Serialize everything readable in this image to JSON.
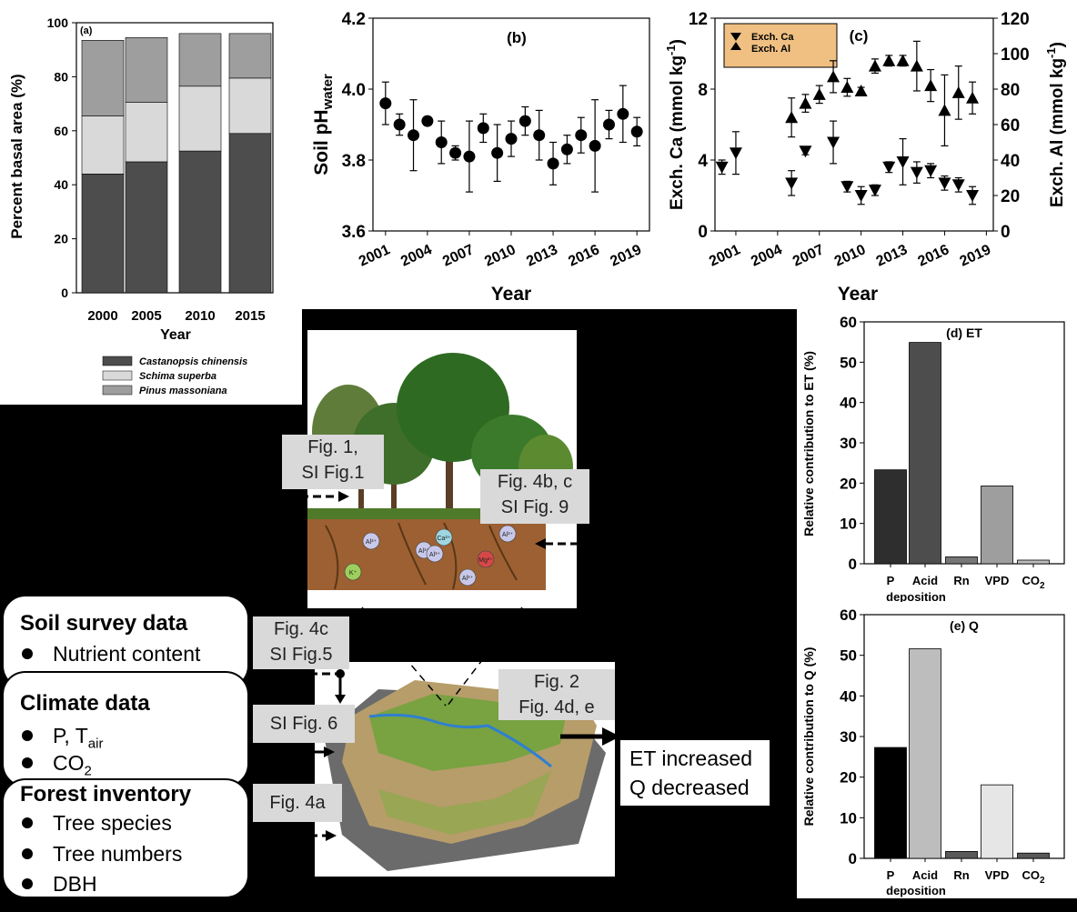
{
  "chart_data": [
    {
      "id": "a",
      "type": "bar",
      "stacked": true,
      "panel_label": "(a)",
      "ylabel": "Percent basal area (%)",
      "xlabel": "Year",
      "ylim": [
        0,
        100
      ],
      "yticks": [
        "0",
        "20",
        "40",
        "60",
        "80",
        "100"
      ],
      "categories": [
        "2000",
        "2005",
        "2010",
        "2015"
      ],
      "series": [
        {
          "name": "Castanopsis chinensis",
          "values": [
            44,
            48.5,
            52.5,
            59
          ],
          "color": "#4d4d4d"
        },
        {
          "name": "Schima superba",
          "values": [
            21.5,
            22,
            24,
            20.5
          ],
          "color": "#d9d9d9"
        },
        {
          "name": "Pinus massoniana",
          "values": [
            28,
            24,
            19.5,
            16.5
          ],
          "color": "#9e9e9e"
        }
      ]
    },
    {
      "id": "b",
      "type": "scatter",
      "panel_label": "(b)",
      "ylabel": "Soil pH",
      "ylabel_sub": "water",
      "xlabel": "Year",
      "ylim": [
        3.6,
        4.2
      ],
      "yticks": [
        "3.6",
        "3.8",
        "4.0",
        "4.2"
      ],
      "xticks": [
        "2001",
        "2004",
        "2007",
        "2010",
        "2013",
        "2016",
        "2019"
      ],
      "x": [
        2001,
        2002,
        2003,
        2004,
        2005,
        2006,
        2007,
        2008,
        2009,
        2010,
        2011,
        2012,
        2013,
        2014,
        2015,
        2016,
        2017,
        2018,
        2019
      ],
      "y": [
        3.96,
        3.9,
        3.87,
        3.91,
        3.85,
        3.82,
        3.81,
        3.89,
        3.82,
        3.86,
        3.91,
        3.87,
        3.79,
        3.83,
        3.87,
        3.84,
        3.9,
        3.93,
        3.88
      ],
      "err": [
        0.06,
        0.03,
        0.1,
        0.01,
        0.06,
        0.02,
        0.1,
        0.04,
        0.08,
        0.05,
        0.04,
        0.07,
        0.06,
        0.04,
        0.05,
        0.13,
        0.04,
        0.08,
        0.04
      ]
    },
    {
      "id": "c",
      "type": "scatter",
      "panel_label": "(c)",
      "ylabel_left": "Exch. Ca (mmol kg",
      "ylabel_right": "Exch. Al (mmol kg",
      "ylabel_sup": "-1",
      "ylabel_close": ")",
      "xlabel": "Year",
      "ylim_left": [
        0,
        12
      ],
      "ylim_right": [
        0,
        120
      ],
      "yticks_left": [
        "0",
        "4",
        "8",
        "12"
      ],
      "yticks_right": [
        "0",
        "20",
        "40",
        "60",
        "80",
        "100",
        "120"
      ],
      "xticks": [
        "2001",
        "2004",
        "2007",
        "2010",
        "2013",
        "2016",
        "2019"
      ],
      "legend": [
        "Exch. Ca",
        "Exch. Al"
      ],
      "series": [
        {
          "name": "Exch. Ca",
          "marker": "triangle-down",
          "axis": "left",
          "x": [
            2000,
            2001,
            2005,
            2006,
            2008,
            2009,
            2010,
            2011,
            2012,
            2013,
            2014,
            2015,
            2016,
            2017,
            2018
          ],
          "y": [
            3.6,
            4.4,
            2.7,
            4.5,
            5.0,
            2.5,
            2.0,
            2.3,
            3.6,
            3.9,
            3.3,
            3.4,
            2.7,
            2.6,
            2.0
          ],
          "err": [
            0.4,
            1.2,
            0.7,
            0.2,
            1.2,
            0.3,
            0.5,
            0.3,
            0.3,
            1.3,
            0.6,
            0.4,
            0.4,
            0.4,
            0.5
          ]
        },
        {
          "name": "Exch. Al",
          "marker": "triangle-up",
          "axis": "right",
          "x": [
            2005,
            2006,
            2007,
            2008,
            2009,
            2010,
            2011,
            2012,
            2013,
            2014,
            2015,
            2016,
            2017,
            2018
          ],
          "y": [
            64,
            72,
            77,
            87,
            81,
            79,
            93,
            96,
            96,
            93,
            82,
            68,
            78,
            75
          ],
          "err": [
            11,
            5,
            5,
            9,
            5,
            2,
            4,
            3,
            3,
            14,
            9,
            20,
            15,
            9
          ]
        }
      ]
    },
    {
      "id": "d",
      "type": "bar",
      "panel_label": "(d) ET",
      "ylabel": "Relative contribution to ET (%)",
      "ylim": [
        0,
        60
      ],
      "yticks": [
        "0",
        "10",
        "20",
        "30",
        "40",
        "50",
        "60"
      ],
      "categories": [
        "P",
        "Acid",
        "Rn",
        "VPD",
        "CO"
      ],
      "category_sub": [
        "",
        "",
        "",
        "",
        "2"
      ],
      "category_line2": "deposition",
      "values": [
        23.3,
        54.9,
        1.7,
        19.3,
        0.9
      ],
      "colors": [
        "#2e2e2e",
        "#4d4d4d",
        "#777777",
        "#9e9e9e",
        "#bdbdbd"
      ]
    },
    {
      "id": "e",
      "type": "bar",
      "panel_label": "(e) Q",
      "ylabel": "Relative contribution to Q (%)",
      "ylim": [
        0,
        60
      ],
      "yticks": [
        "0",
        "10",
        "20",
        "30",
        "40",
        "50",
        "60"
      ],
      "categories": [
        "P",
        "Acid",
        "Rn",
        "VPD",
        "CO"
      ],
      "category_sub": [
        "",
        "",
        "",
        "",
        "2"
      ],
      "category_line2": "deposition",
      "values": [
        27.3,
        51.6,
        1.7,
        18.1,
        1.3
      ],
      "colors": [
        "#000000",
        "#bdbdbd",
        "#595959",
        "#e6e6e6",
        "#595959"
      ]
    }
  ],
  "schematic": {
    "boxes": [
      {
        "heading": "Soil survey data",
        "items": [
          {
            "t": "Nutrient content",
            "sub": ""
          }
        ]
      },
      {
        "heading": "Climate data",
        "items": [
          {
            "t": "P, T",
            "sub": "air"
          },
          {
            "t": "CO",
            "sub": "2"
          }
        ]
      },
      {
        "heading": "Forest inventory",
        "items": [
          {
            "t": "Tree species",
            "sub": ""
          },
          {
            "t": "Tree numbers",
            "sub": ""
          },
          {
            "t": "DBH",
            "sub": ""
          }
        ]
      }
    ],
    "labels": {
      "fig1_l1": "Fig. 1,",
      "fig1_l2": "SI Fig.1",
      "fig4bc_l1": "Fig. 4b, c",
      "fig4bc_l2": "SI Fig. 9",
      "fig4c_l1": "Fig. 4c",
      "fig4c_l2": "SI Fig.5",
      "si6": "SI Fig. 6",
      "fig4a": "Fig. 4a",
      "fig2_l1": "Fig. 2",
      "fig2_l2": "Fig. 4d, e"
    },
    "outcome_l1": "ET increased",
    "outcome_l2": "Q decreased",
    "soil_ions": [
      "Al³⁺",
      "Al³⁺",
      "Ca²⁺",
      "Al³⁺",
      "Mg²⁺",
      "K⁺",
      "Al³⁺",
      "Al³⁺"
    ]
  }
}
